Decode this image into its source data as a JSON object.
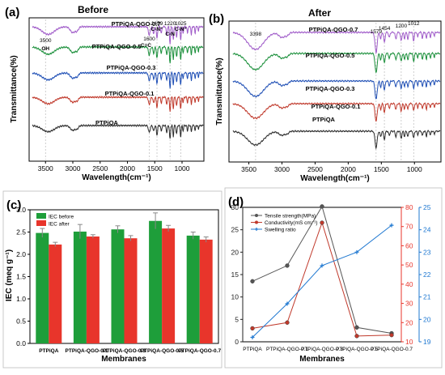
{
  "figure": {
    "width": 550,
    "height": 458
  },
  "panels": {
    "a": {
      "letter": "(a)",
      "title": "Before",
      "xlabel": "Wavelength(cm⁻¹)",
      "ylabel": "Transmittance(%)"
    },
    "b": {
      "letter": "(b)",
      "title": "After",
      "xlabel": "Wavelength(cm⁻¹)",
      "ylabel": "Transmittance(%)"
    },
    "c": {
      "letter": "(c)",
      "xlabel": "Membranes",
      "ylabel": "IEC (meq g⁻¹)"
    },
    "d": {
      "letter": "(d)",
      "xlabel": "Membranes"
    }
  },
  "chart_data": [
    {
      "id": "a",
      "type": "line",
      "title": "Before",
      "xlabel": "Wavelength(cm⁻¹)",
      "ylabel": "Transmittance(%)",
      "xlim": [
        3800,
        600
      ],
      "xticks": [
        3500,
        3000,
        2500,
        2000,
        1500,
        1000
      ],
      "annotations": [
        "3500",
        "OH",
        "1600",
        "C=C",
        "1459",
        "C-N⁺",
        "1220",
        "C-N",
        "1025",
        "C-N⁺"
      ],
      "series": [
        {
          "name": "PTPiQA",
          "color": "#2b2b2b"
        },
        {
          "name": "PTPiQA-QGO-0.1",
          "color": "#c0392b"
        },
        {
          "name": "PTPiQA-QGO-0.3",
          "color": "#1f4fb5"
        },
        {
          "name": "PTPiQA-QGO-0.5",
          "color": "#1a8f3a"
        },
        {
          "name": "PTPiQA-QGO-0.7",
          "color": "#a05cc9"
        }
      ]
    },
    {
      "id": "b",
      "type": "line",
      "title": "After",
      "xlabel": "Wavelength(cm⁻¹)",
      "ylabel": "Transmittance(%)",
      "xlim": [
        3800,
        600
      ],
      "xticks": [
        3500,
        3000,
        2500,
        2000,
        1500,
        1000
      ],
      "annotations": [
        "3398",
        "1579",
        "1454",
        "1200",
        "1012"
      ],
      "series": [
        {
          "name": "PTPiQA",
          "color": "#2b2b2b"
        },
        {
          "name": "PTPiQA-QGO-0.1",
          "color": "#c0392b"
        },
        {
          "name": "PTPiQA-QGO-0.3",
          "color": "#1f4fb5"
        },
        {
          "name": "PTPiQA-QGO-0.5",
          "color": "#1a8f3a"
        },
        {
          "name": "PTPiQA-QGO-0.7",
          "color": "#a05cc9"
        }
      ]
    },
    {
      "id": "c",
      "type": "bar",
      "xlabel": "Membranes",
      "ylabel": "IEC (meq g⁻¹)",
      "ylim": [
        0.0,
        3.0
      ],
      "yticks": [
        "0.0",
        "0.5",
        "1.0",
        "1.5",
        "2.0",
        "2.5",
        "3.0"
      ],
      "categories": [
        "PTPiQA",
        "PTPiQA-QGO-0.1",
        "PTPiQA-QGO-0.3",
        "PTPiQA-QGO-0.5",
        "PTPiQA-QGO-0.7"
      ],
      "legend": "top-left",
      "series": [
        {
          "name": "IEC before",
          "color": "#1e9e3a",
          "values": [
            2.48,
            2.51,
            2.56,
            2.75,
            2.42
          ],
          "errors": [
            0.1,
            0.16,
            0.08,
            0.18,
            0.08
          ]
        },
        {
          "name": "IEC after",
          "color": "#e8352b",
          "values": [
            2.22,
            2.4,
            2.36,
            2.58,
            2.33
          ],
          "errors": [
            0.05,
            0.04,
            0.06,
            0.07,
            0.06
          ]
        }
      ]
    },
    {
      "id": "d",
      "type": "line",
      "xlabel": "Membranes",
      "categories": [
        "PTPiQA",
        "PTPiQA-QGO-0.1",
        "PTPiQA-QGO-0.3",
        "PTPiQA-QGO-0.5",
        "PTPiQA-QGO-0.7"
      ],
      "legend": "top-left",
      "axes": {
        "left": {
          "ylim": [
            0,
            30
          ],
          "ticks": [
            "0",
            "5",
            "10",
            "15",
            "20",
            "25",
            "30"
          ],
          "color": "#222222"
        },
        "right1": {
          "ylim": [
            10,
            80
          ],
          "ticks": [
            "10",
            "20",
            "30",
            "40",
            "50",
            "60",
            "70",
            "80"
          ],
          "color": "#e8352b"
        },
        "right2": {
          "ylim": [
            19,
            25
          ],
          "ticks": [
            "19",
            "20",
            "21",
            "22",
            "23",
            "24",
            "25"
          ],
          "color": "#1f78d1"
        }
      },
      "series": [
        {
          "name": "Tensile strength(MPa)",
          "axis": "left",
          "color": "#555555",
          "marker": "circle",
          "values": [
            13.5,
            17.0,
            30.2,
            3.2,
            1.9
          ]
        },
        {
          "name": "Conductivity(mS cm⁻¹)",
          "axis": "right1",
          "color": "#c0392b",
          "marker": "circle",
          "values": [
            17.0,
            20.0,
            72.0,
            13.0,
            13.5
          ]
        },
        {
          "name": "Swelling ratio",
          "axis": "right2",
          "color": "#1f78d1",
          "marker": "cross",
          "values": [
            19.2,
            20.7,
            22.4,
            23.0,
            24.2
          ]
        }
      ]
    }
  ]
}
